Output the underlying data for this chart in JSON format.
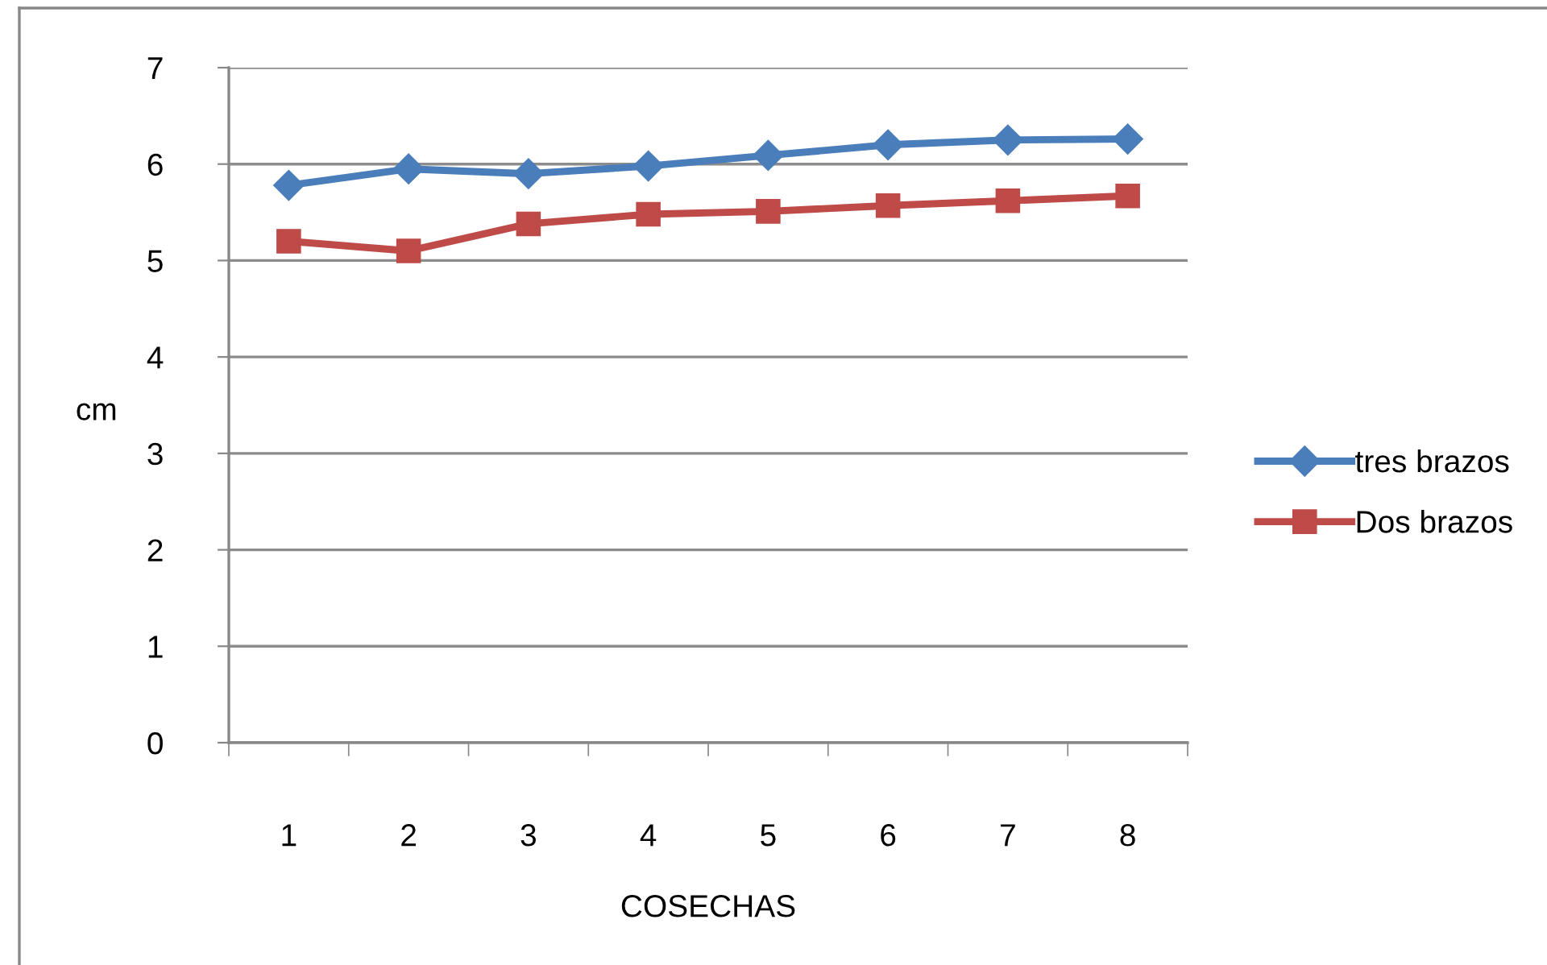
{
  "chart_data": {
    "type": "line",
    "xlabel": "COSECHAS",
    "ylabel": "cm",
    "categories": [
      "1",
      "2",
      "3",
      "4",
      "5",
      "6",
      "7",
      "8"
    ],
    "series": [
      {
        "name": "tres brazos",
        "color": "#4a7ebb",
        "marker": "diamond",
        "values": [
          5.78,
          5.95,
          5.9,
          5.98,
          6.09,
          6.2,
          6.25,
          6.26
        ]
      },
      {
        "name": "Dos brazos",
        "color": "#be4b48",
        "marker": "square",
        "values": [
          5.2,
          5.1,
          5.38,
          5.48,
          5.51,
          5.57,
          5.62,
          5.67
        ]
      }
    ],
    "ylim": [
      0,
      7
    ],
    "yticks": [
      0,
      1,
      2,
      3,
      4,
      5,
      6,
      7
    ],
    "grid": "y",
    "legend": "right"
  }
}
